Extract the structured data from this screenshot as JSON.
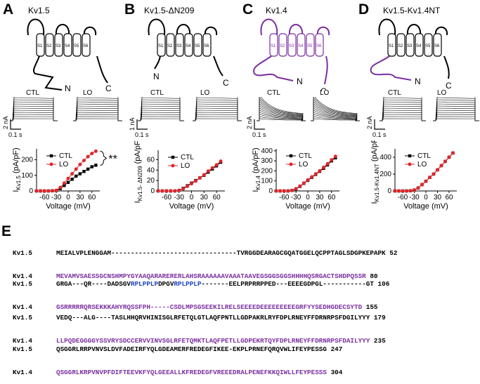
{
  "panels": [
    {
      "letter": "A",
      "title": "Kv1.5",
      "n_label": "N",
      "c_label": "C",
      "seg_labels": [
        "S1",
        "S2",
        "S3",
        "S4",
        "S5",
        "S6"
      ],
      "trace_labels": [
        "CTL",
        "LO"
      ],
      "scale": {
        "current": "2 nA",
        "time": "0.1 s"
      }
    },
    {
      "letter": "B",
      "title": "Kv1.5-ΔN209",
      "n_label": "N",
      "c_label": "C",
      "seg_labels": [
        "S1",
        "S2",
        "S3",
        "S4",
        "S5",
        "S6"
      ],
      "trace_labels": [
        "CTL",
        "LO"
      ],
      "scale": {
        "current": "1 nA",
        "time": "0.1 s"
      }
    },
    {
      "letter": "C",
      "title": "Kv1.4",
      "n_label": "N",
      "c_label": "C",
      "seg_labels": [
        "S1",
        "S2",
        "S3",
        "S4",
        "S5",
        "S6"
      ],
      "trace_labels": [
        "CTL",
        "LO"
      ],
      "scale": {
        "current": "2 nA",
        "time": "0.1 s"
      }
    },
    {
      "letter": "D",
      "title": "Kv1.5-Kv1.4NT",
      "n_label": "N",
      "c_label": "C",
      "seg_labels": [
        "S1",
        "S2",
        "S3",
        "S4",
        "S5",
        "S6"
      ],
      "trace_labels": [
        "CTL",
        "LO"
      ],
      "scale": {
        "current": "2 nA",
        "time": "0.1 s"
      }
    }
  ],
  "colors": {
    "ctl": "#000000",
    "lo": "#e0262a",
    "kv14": "#7b2ea0",
    "blue": "#1a3fbf"
  },
  "chart_data": [
    {
      "type": "line",
      "panel": "A",
      "xlabel": "Voltage (mV)",
      "ylabel": "I",
      "ylabel_sub": "Kv1.5",
      "ylabel_unit": "(pA/pF)",
      "xticks": [
        "-60",
        "-30",
        "0",
        "30",
        "60"
      ],
      "yticks": [
        "0",
        "100",
        "200"
      ],
      "xlim": [
        -80,
        80
      ],
      "ylim": [
        0,
        270
      ],
      "legend": [
        "CTL",
        "LO"
      ],
      "annotation": "**",
      "x": [
        -80,
        -70,
        -60,
        -50,
        -40,
        -30,
        -20,
        -10,
        0,
        10,
        20,
        30,
        40,
        50,
        60,
        70
      ],
      "series": [
        {
          "name": "CTL",
          "values": [
            0,
            0,
            0,
            0,
            1,
            3,
            15,
            35,
            55,
            75,
            95,
            110,
            125,
            140,
            155,
            165
          ]
        },
        {
          "name": "LO",
          "values": [
            0,
            0,
            0,
            0,
            1,
            4,
            22,
            50,
            80,
            110,
            140,
            170,
            195,
            220,
            240,
            255
          ]
        }
      ]
    },
    {
      "type": "line",
      "panel": "B",
      "xlabel": "Voltage (mV)",
      "ylabel": "I",
      "ylabel_sub": "Kv1.5- ΔN209",
      "ylabel_unit": "(pA/pF)",
      "xticks": [
        "-60",
        "-30",
        "0",
        "30",
        "60"
      ],
      "yticks": [
        "0",
        "20",
        "40",
        "60"
      ],
      "xlim": [
        -80,
        80
      ],
      "ylim": [
        0,
        78
      ],
      "legend": [
        "CTL",
        "LO"
      ],
      "x": [
        -80,
        -70,
        -60,
        -50,
        -40,
        -30,
        -20,
        -10,
        0,
        10,
        20,
        30,
        40,
        50,
        60,
        70
      ],
      "series": [
        {
          "name": "CTL",
          "values": [
            0,
            0,
            0,
            0,
            0,
            1,
            5,
            10,
            15,
            20,
            25,
            30,
            36,
            42,
            48,
            55
          ]
        },
        {
          "name": "LO",
          "values": [
            0,
            0,
            0,
            0,
            0,
            1,
            4,
            9,
            14,
            19,
            25,
            31,
            38,
            44,
            50,
            57
          ]
        }
      ]
    },
    {
      "type": "line",
      "panel": "C",
      "xlabel": "Voltage (mV)",
      "ylabel": "I",
      "ylabel_sub": "Kv1.4",
      "ylabel_unit": "(pA/pF)",
      "xticks": [
        "-60",
        "-30",
        "0",
        "30",
        "60"
      ],
      "yticks": [
        "0",
        "100",
        "200",
        "300",
        "400"
      ],
      "xlim": [
        -80,
        80
      ],
      "ylim": [
        0,
        420
      ],
      "legend": [
        "CTL",
        "LO"
      ],
      "x": [
        -80,
        -70,
        -60,
        -50,
        -40,
        -30,
        -20,
        -10,
        0,
        10,
        20,
        30,
        40,
        50,
        60,
        70
      ],
      "series": [
        {
          "name": "CTL",
          "values": [
            0,
            0,
            0,
            0,
            5,
            20,
            45,
            75,
            105,
            135,
            165,
            195,
            225,
            260,
            300,
            330
          ]
        },
        {
          "name": "LO",
          "values": [
            0,
            0,
            0,
            0,
            5,
            22,
            48,
            78,
            110,
            140,
            170,
            200,
            235,
            270,
            310,
            345
          ]
        }
      ]
    },
    {
      "type": "line",
      "panel": "D",
      "xlabel": "Voltage (mV)",
      "ylabel": "I",
      "ylabel_sub": "Kv1.5-Kv1.4NT",
      "ylabel_unit": "(pA/pF)",
      "xticks": [
        "-60",
        "-30",
        "0",
        "30",
        "60"
      ],
      "yticks": [
        "0",
        "200",
        "400"
      ],
      "xlim": [
        -80,
        80
      ],
      "ylim": [
        0,
        500
      ],
      "legend": [
        "CTL",
        "LO"
      ],
      "x": [
        -80,
        -70,
        -60,
        -50,
        -40,
        -30,
        -20,
        -10,
        0,
        10,
        20,
        30,
        40,
        50,
        60,
        70
      ],
      "series": [
        {
          "name": "CTL",
          "values": [
            0,
            0,
            0,
            0,
            2,
            10,
            35,
            75,
            115,
            160,
            200,
            250,
            300,
            350,
            400,
            450
          ]
        },
        {
          "name": "LO",
          "values": [
            0,
            0,
            0,
            0,
            2,
            11,
            36,
            76,
            116,
            161,
            201,
            251,
            301,
            351,
            401,
            451
          ]
        }
      ]
    }
  ],
  "alignment": {
    "letter": "E",
    "blocks": [
      {
        "rows": [
          {
            "name": "Kv1.5",
            "seq": "MEIALVPLENGGAM--------------------------------TVRGGDEARAGCGQATGGELQCPPTAGLSDGPKEPAPK",
            "num": "52"
          },
          {
            "name": "Kv1.4",
            "seq": "MEVAMVSAESSGCNSHMPYGYAAQARARERERLAHSRAAAAAAVAAATAAVEGSGGSGGSHHHHQSRGACTSHDPQSSR",
            "num": "80"
          }
        ]
      },
      {
        "rows": [
          {
            "name": "Kv1.5",
            "seq_parts": [
              "GRGA---QR----DADSGV",
              "RPLPPLP",
              "DPGV",
              "RPLPPLP",
              "-------EELPRPRRPPED---EEEEGDPGL-----------GT"
            ],
            "num": "106"
          },
          {
            "name": "Kv1.4",
            "seq": "GSRRRRRQRSEKKKAHYRQSSFPH-----CSDLMPSGSEEKILRELSEEEEDEEEEEEEEEGRFYYSEDHGDECSYTD",
            "num": "155"
          }
        ]
      },
      {
        "rows": [
          {
            "name": "Kv1.5",
            "seq": "VEDQ---ALG----TASLHHQRVHINISGLRFETQLGTLAQFPNTLLGDPAKRLRYFDPLRNEYFFDRNRPSFDGILYYY",
            "num": "179"
          },
          {
            "name": "Kv1.4",
            "seq": "LLPQDEGGGGYSSVRYSDCCERVVINVSGLRFETQMKTLAQFPETLLGDPEKRTQYFDPLRNEYFFDRNRPSFDAILYYY",
            "num": "235"
          }
        ]
      },
      {
        "rows": [
          {
            "name": "Kv1.5",
            "seq": "QSGGRLRRPVNVSLDVFADEIRFYQLGDEAMERFREDEGFIKEE-EKPLPRNEFQRQVWLIFEYPESSG",
            "num": "247"
          },
          {
            "name": "Kv1.4",
            "seq": "QSGGRLKRPVNVPFDIFTEEVKFYQLGEEALLKFREDEGFVREEEDRALPENEFKKQIWLLFEYPESSS",
            "num": "304"
          }
        ]
      }
    ]
  }
}
